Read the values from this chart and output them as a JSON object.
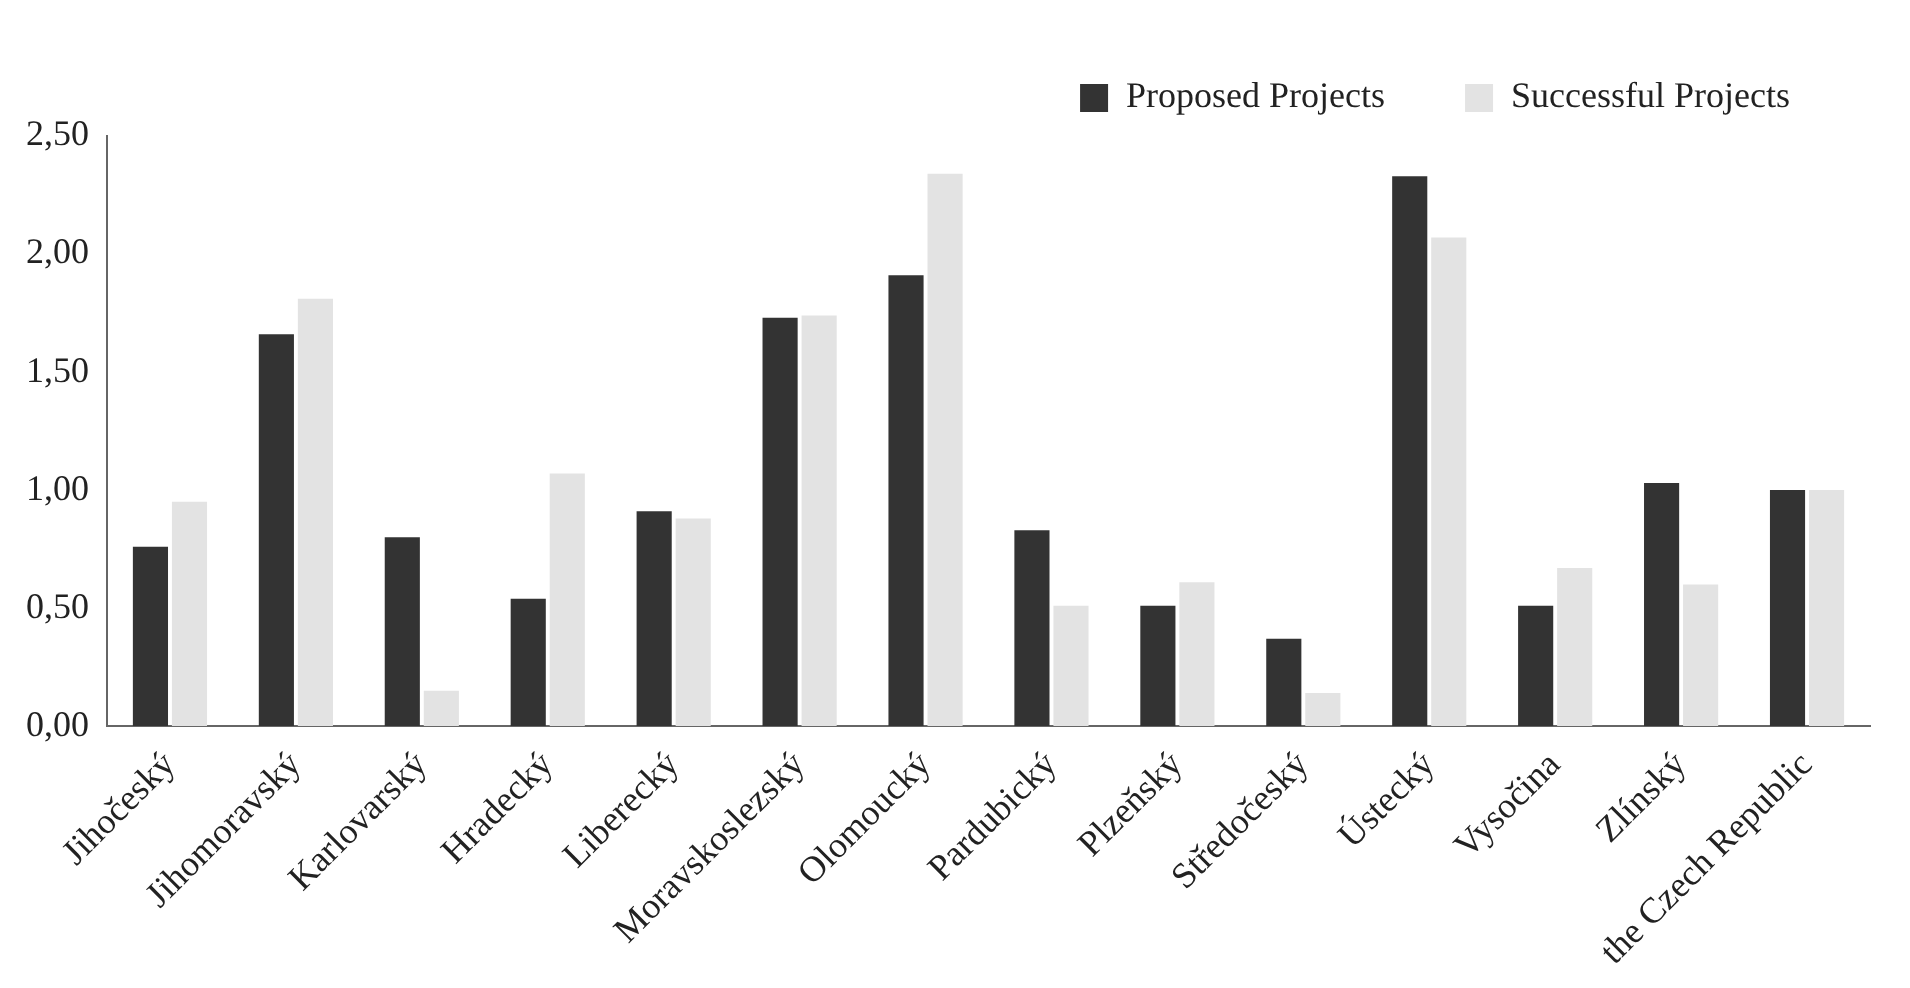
{
  "chart_data": {
    "type": "bar",
    "categories": [
      "Jihočeský",
      "Jihomoravský",
      "Karlovarský",
      "Hradecký",
      "Liberecký",
      "Moravskoslezský",
      "Olomoucký",
      "Pardubický",
      "Plzeňský",
      "Středočeský",
      "Ústecký",
      "Vysočina",
      "Zlínský",
      "the Czech Republic"
    ],
    "series": [
      {
        "name": "Proposed Projects",
        "color": "#333333",
        "values": [
          0.76,
          1.66,
          0.8,
          0.54,
          0.91,
          1.73,
          1.91,
          0.83,
          0.51,
          0.37,
          2.33,
          0.51,
          1.03,
          1.0
        ]
      },
      {
        "name": "Successful Projects",
        "color": "#e3e3e3",
        "values": [
          0.95,
          1.81,
          0.15,
          1.07,
          0.88,
          1.74,
          2.34,
          0.51,
          0.61,
          0.14,
          2.07,
          0.67,
          0.6,
          1.0
        ]
      }
    ],
    "ylim": [
      0,
      2.5
    ],
    "yticks": [
      {
        "value": 0,
        "label": "0,00"
      },
      {
        "value": 0.5,
        "label": "0,50"
      },
      {
        "value": 1,
        "label": "1,00"
      },
      {
        "value": 1.5,
        "label": "1,50"
      },
      {
        "value": 2,
        "label": "2,00"
      },
      {
        "value": 2.5,
        "label": "2,50"
      }
    ],
    "grid": false,
    "legend": "top right"
  }
}
